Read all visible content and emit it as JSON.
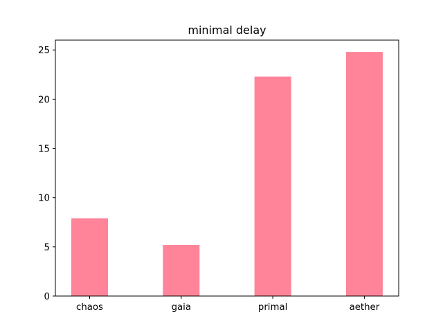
{
  "chart_data": {
    "type": "bar",
    "title": "minimal delay",
    "xlabel": "",
    "ylabel": "",
    "categories": [
      "chaos",
      "gaia",
      "primal",
      "aether"
    ],
    "values": [
      7.9,
      5.2,
      22.3,
      24.8
    ],
    "ylim": [
      0,
      26
    ],
    "yticks": [
      0,
      5,
      10,
      15,
      20,
      25
    ],
    "bar_color": "#ff8499",
    "grid": false,
    "legend": "none"
  }
}
